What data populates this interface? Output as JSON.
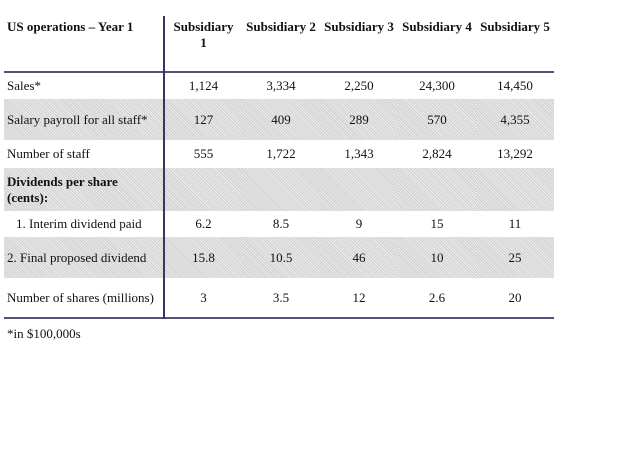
{
  "table": {
    "header": [
      "US operations – Year 1",
      "Subsidiary 1",
      "Subsidiary 2",
      "Subsidiary 3",
      "Subsidiary 4",
      "Subsidiary 5"
    ],
    "rows": [
      {
        "label": "Sales*",
        "values": [
          "1,124",
          "3,334",
          "2,250",
          "24,300",
          "14,450"
        ]
      },
      {
        "label": "Salary payroll for all staff*",
        "values": [
          "127",
          "409",
          "289",
          "570",
          "4,355"
        ]
      },
      {
        "label": "Number of staff",
        "values": [
          "555",
          "1,722",
          "1,343",
          "2,824",
          "13,292"
        ]
      },
      {
        "label": "Dividends per share (cents):",
        "values": []
      },
      {
        "label": "1.  Interim dividend paid",
        "values": [
          "6.2",
          "8.5",
          "9",
          "15",
          "11"
        ]
      },
      {
        "label": "2.  Final proposed dividend",
        "values": [
          "15.8",
          "10.5",
          "46",
          "10",
          "25"
        ]
      },
      {
        "label": "Number of shares (millions)",
        "values": [
          "3",
          "3.5",
          "12",
          "2.6",
          "20"
        ]
      }
    ]
  },
  "footnote": "*in $100,000s"
}
